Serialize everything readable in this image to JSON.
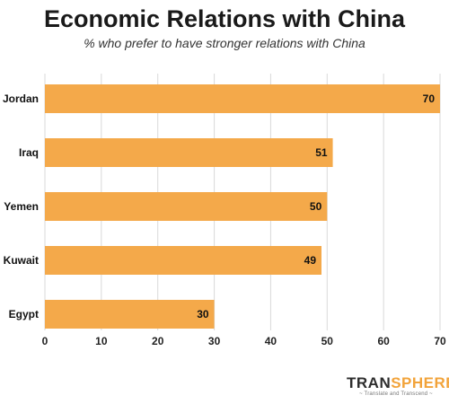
{
  "chart_data": {
    "type": "bar",
    "orientation": "horizontal",
    "title": "Economic Relations with China",
    "subtitle": "% who prefer to have stronger relations with China",
    "categories": [
      "Jordan",
      "Iraq",
      "Yemen",
      "Kuwait",
      "Egypt"
    ],
    "values": [
      70,
      51,
      50,
      49,
      30
    ],
    "xlim": [
      0,
      70
    ],
    "xticks": [
      0,
      10,
      20,
      30,
      40,
      50,
      60,
      70
    ],
    "grid": true,
    "bar_color": "#f4a94a",
    "grid_color": "#d9d9d9"
  },
  "branding": {
    "logo_dark": "TRAN",
    "logo_accent": "SPHERE",
    "tagline": "~ Translate and Transcend ~"
  }
}
